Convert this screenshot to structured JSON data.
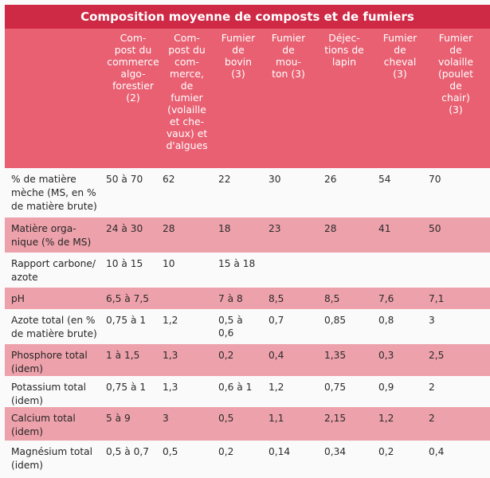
{
  "title": "Composition moyenne de composts et de fumiers",
  "columns": [
    "Com-\npost du\ncommerce\nalgo-\nforestier\n(2)",
    "Com-\npost du\ncom-\nmerce,\nde\nfumier\n(volaille\net che-\nvaux) et\nd'algues",
    "Fumier\nde\nbovin\n(3)",
    "Fumier\nde\nmou-\nton (3)",
    "Déjec-\ntions de\nlapin",
    "Fumier\nde\ncheval\n(3)",
    "Fumier\nde\nvolaille\n(poulet\nde\nchair)\n(3)"
  ],
  "rows": [
    {
      "label": "% de matière\nmèche (MS, en %\nde matière brute)",
      "values": [
        "50 à 70",
        "62",
        "22",
        "30",
        "26",
        "54",
        "70"
      ]
    },
    {
      "label": "Matière orga-\nnique (% de MS)",
      "values": [
        "24 à 30",
        "28",
        "18",
        "23",
        "28",
        "41",
        "50"
      ]
    },
    {
      "label": "Rapport carbone/\nazote",
      "values": [
        "10 à 15",
        "10",
        "15 à 18",
        "",
        "",
        "",
        ""
      ]
    },
    {
      "label": "pH",
      "values": [
        "6,5 à 7,5",
        "",
        "7 à 8",
        "8,5",
        "8,5",
        "7,6",
        "7,1"
      ]
    },
    {
      "label": "Azote total (en %\nde matière brute)",
      "values": [
        "0,75 à 1",
        "1,2",
        "0,5 à\n0,6",
        "0,7",
        "0,85",
        "0,8",
        "3"
      ]
    },
    {
      "label": "Phosphore total\n(idem)",
      "values": [
        "1 à 1,5",
        "1,3",
        "0,2",
        "0,4",
        "1,35",
        "0,3",
        "2,5"
      ]
    },
    {
      "label": "Potassium total\n(idem)",
      "values": [
        "0,75 à 1",
        "1,3",
        "0,6 à 1",
        "1,2",
        "0,75",
        "0,9",
        "2"
      ]
    },
    {
      "label": "Calcium total\n(idem)",
      "values": [
        "5 à 9",
        "3",
        "0,5",
        "1,1",
        "2,15",
        "1,2",
        "2"
      ]
    },
    {
      "label": "Magnésium total\n(idem)",
      "values": [
        "0,5 à 0,7",
        "0,5",
        "0,2",
        "0,14",
        "0,34",
        "0,2",
        "0,4"
      ]
    }
  ]
}
